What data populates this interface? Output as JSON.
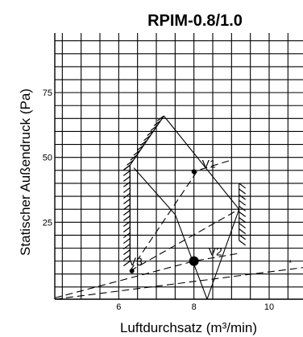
{
  "chart_data": {
    "type": "line",
    "title": "RPIM-0.8/1.0",
    "xlabel": "Luftdurchsatz (m³/min)",
    "ylabel": "Statischer Außendruck (Pa)",
    "xlim": [
      4.3,
      10.9
    ],
    "ylim": [
      -4.7,
      98
    ],
    "x_ticks": [
      6,
      8,
      10
    ],
    "y_ticks": [
      25,
      50,
      75
    ],
    "grid": true,
    "envelope": [
      [
        7.2,
        66
      ],
      [
        9.2,
        30
      ],
      [
        8.35,
        -4.7
      ]
    ],
    "left_boundary": [
      [
        6.3,
        10
      ],
      [
        6.3,
        47
      ],
      [
        7.2,
        66
      ]
    ],
    "upper_curve": [
      [
        6.4,
        46
      ],
      [
        7.5,
        28
      ],
      [
        8.35,
        -4.7
      ]
    ],
    "system_curves": [
      {
        "points": [
          [
            6.3,
            6.2
          ],
          [
            8.1,
            45
          ],
          [
            9.0,
            49
          ]
        ]
      },
      {
        "points": [
          [
            6.3,
            6.2
          ],
          [
            9.2,
            30
          ]
        ]
      },
      {
        "points": [
          [
            4.3,
            -4.2
          ],
          [
            8.0,
            10
          ],
          [
            9.2,
            13
          ]
        ]
      },
      {
        "points": [
          [
            4.3,
            -4.7
          ],
          [
            10.9,
            7.5
          ]
        ],
        "marker": "*"
      }
    ],
    "hatched_boundaries": [
      {
        "points": [
          [
            6.3,
            10
          ],
          [
            6.3,
            47
          ],
          [
            7.2,
            66
          ]
        ],
        "side": "left"
      },
      {
        "points": [
          [
            9.2,
            40
          ],
          [
            9.2,
            18
          ]
        ],
        "side": "right"
      }
    ],
    "points": [
      {
        "name": "V1",
        "x": 8.0,
        "y": 44.5,
        "marker": "small"
      },
      {
        "name": "V2",
        "x": 8.0,
        "y": 10.0,
        "marker": "large"
      },
      {
        "name": "V3",
        "x": 6.35,
        "y": 6.2,
        "marker": "small"
      }
    ]
  }
}
